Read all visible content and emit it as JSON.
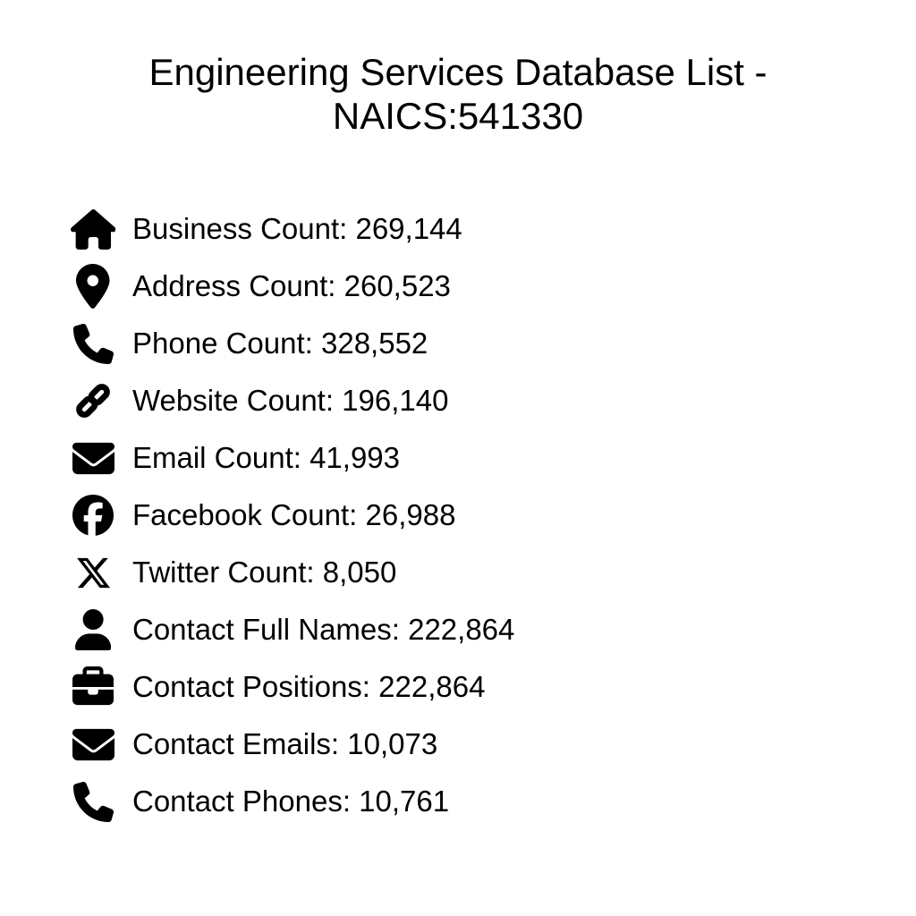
{
  "page_title": {
    "line1": "Engineering Services Database List -",
    "line2": "NAICS:541330"
  },
  "colors": {
    "text": "#000000",
    "background": "#ffffff",
    "icon": "#000000"
  },
  "stats": [
    {
      "icon": "home",
      "icon_name": "home-icon",
      "label": "Business Count",
      "value": "269,144"
    },
    {
      "icon": "location",
      "icon_name": "location-pin-icon",
      "label": "Address Count",
      "value": "260,523"
    },
    {
      "icon": "phone",
      "icon_name": "phone-icon",
      "label": "Phone Count",
      "value": "328,552"
    },
    {
      "icon": "link",
      "icon_name": "link-icon",
      "label": "Website Count",
      "value": "196,140"
    },
    {
      "icon": "envelope",
      "icon_name": "envelope-icon",
      "label": "Email Count",
      "value": "41,993"
    },
    {
      "icon": "facebook",
      "icon_name": "facebook-icon",
      "label": "Facebook Count",
      "value": "26,988"
    },
    {
      "icon": "x-twitter",
      "icon_name": "x-twitter-icon",
      "label": "Twitter Count",
      "value": "8,050"
    },
    {
      "icon": "user",
      "icon_name": "user-icon",
      "label": "Contact Full Names",
      "value": "222,864"
    },
    {
      "icon": "briefcase",
      "icon_name": "briefcase-icon",
      "label": "Contact Positions",
      "value": "222,864"
    },
    {
      "icon": "envelope",
      "icon_name": "envelope-icon",
      "label": "Contact Emails",
      "value": "10,073"
    },
    {
      "icon": "phone",
      "icon_name": "phone-icon",
      "label": "Contact Phones",
      "value": "10,761"
    }
  ]
}
